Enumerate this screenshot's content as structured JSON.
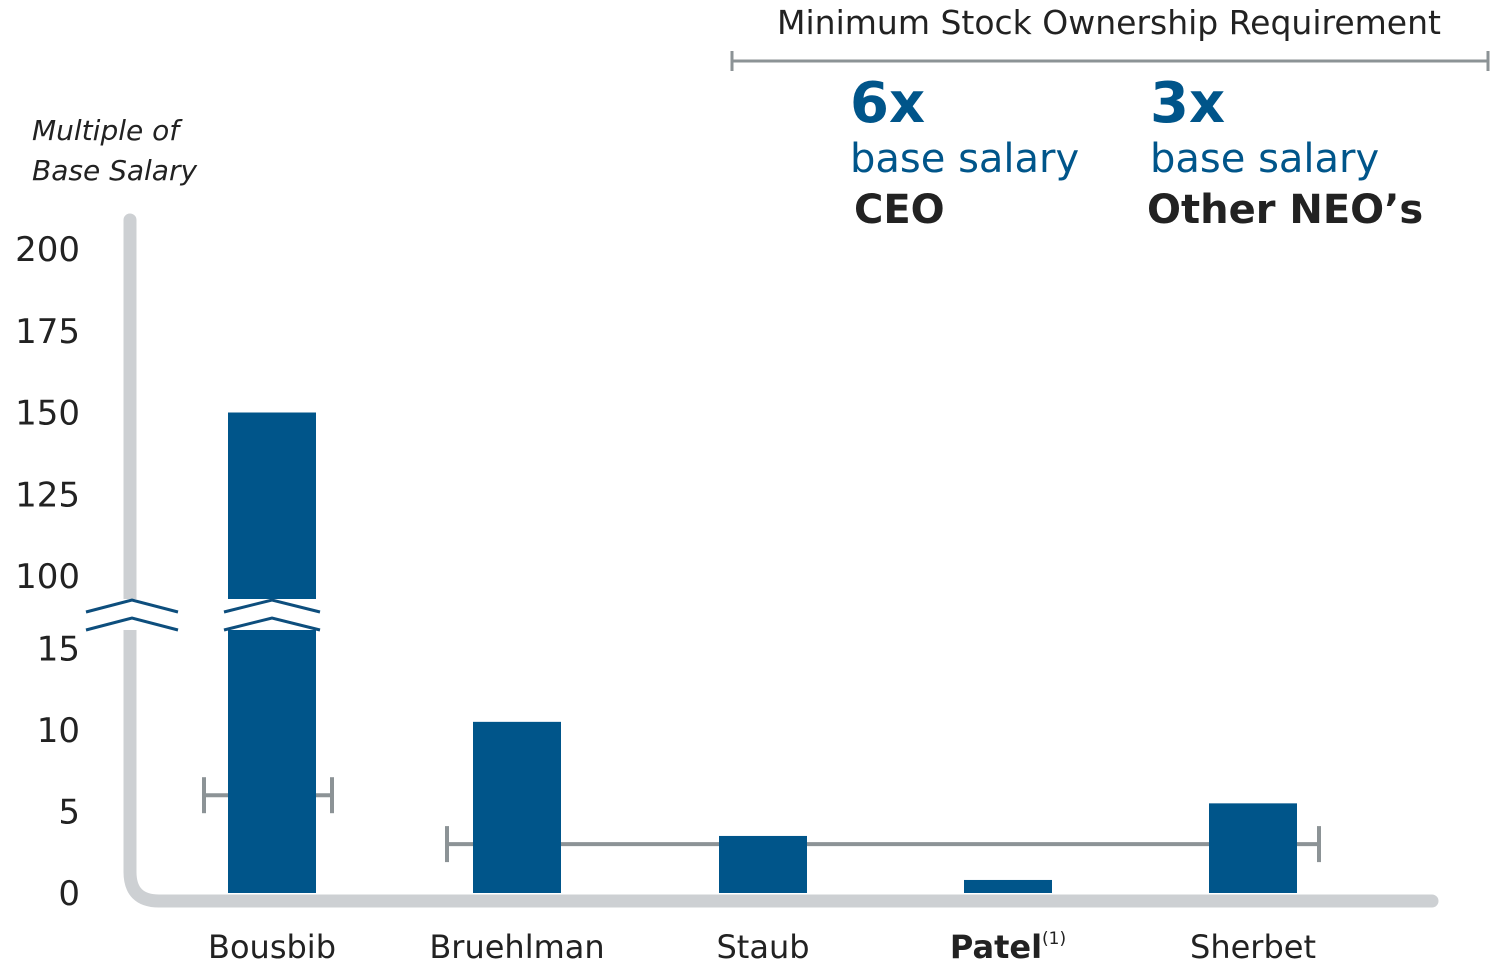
{
  "chart_data": {
    "type": "bar",
    "ylabel_lines": [
      "Multiple of",
      "Base Salary"
    ],
    "categories": [
      "Bousbib",
      "Bruehlman",
      "Staub",
      "Patel",
      "Sherbet"
    ],
    "category_superscripts": [
      "",
      "",
      "",
      "(1)",
      ""
    ],
    "category_bold": [
      false,
      false,
      false,
      true,
      false
    ],
    "values": [
      150,
      10.5,
      3.5,
      0.8,
      5.5
    ],
    "y_ticks_lower": [
      "0",
      "5",
      "10",
      "15"
    ],
    "y_ticks_upper": [
      "100",
      "125",
      "150",
      "175",
      "200"
    ],
    "axis_break": {
      "lower_max": 15,
      "upper_min": 100
    },
    "ylim": [
      0,
      200
    ],
    "reference_lines": [
      {
        "label": "CEO",
        "value": 6,
        "categories": [
          "Bousbib"
        ]
      },
      {
        "label": "Other NEO's",
        "value": 3,
        "categories": [
          "Bruehlman",
          "Staub",
          "Patel",
          "Sherbet"
        ]
      }
    ],
    "bar_color": "#00558a",
    "axis_color": "#cdd0d3",
    "reference_color": "#8c9396"
  },
  "requirement": {
    "title": "Minimum Stock Ownership Requirement",
    "items": [
      {
        "multiple": "6x",
        "unit": "base salary",
        "role": "CEO"
      },
      {
        "multiple": "3x",
        "unit": "base salary",
        "role": "Other NEO’s"
      }
    ]
  }
}
